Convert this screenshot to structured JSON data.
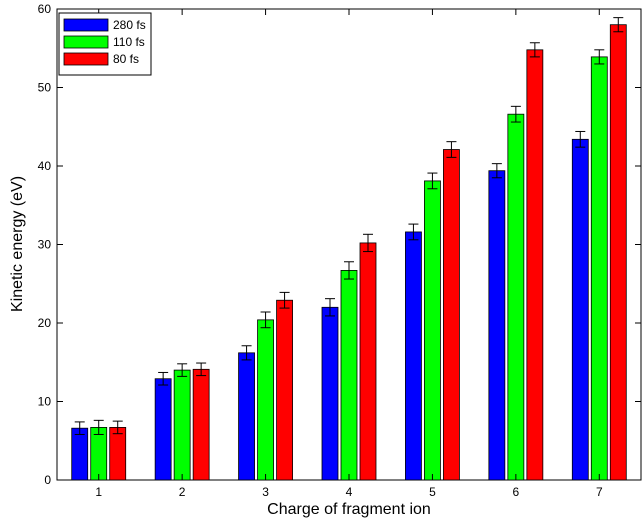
{
  "chart_data": {
    "type": "bar",
    "categories": [
      "1",
      "2",
      "3",
      "4",
      "5",
      "6",
      "7"
    ],
    "series": [
      {
        "name": "280 fs",
        "color": "#0000ff",
        "values": [
          6.6,
          12.9,
          16.2,
          22.0,
          31.6,
          39.4,
          43.4
        ],
        "errors": [
          0.8,
          0.8,
          0.9,
          1.1,
          1.0,
          0.9,
          1.0
        ]
      },
      {
        "name": "110 fs",
        "color": "#00ff00",
        "values": [
          6.7,
          14.0,
          20.4,
          26.7,
          38.1,
          46.6,
          53.9
        ],
        "errors": [
          0.9,
          0.8,
          1.0,
          1.1,
          1.0,
          1.0,
          0.9
        ]
      },
      {
        "name": "80 fs",
        "color": "#ff0000",
        "values": [
          6.7,
          14.1,
          22.9,
          30.2,
          42.1,
          54.8,
          58.0
        ],
        "errors": [
          0.8,
          0.8,
          1.0,
          1.1,
          1.0,
          0.9,
          0.9
        ]
      }
    ],
    "xlabel": "Charge of fragment ion",
    "ylabel": "Kinetic energy (eV)",
    "ylim": [
      0,
      60
    ],
    "yticks": [
      0,
      10,
      20,
      30,
      40,
      50,
      60
    ],
    "grid": false,
    "legend_position": "top-left"
  }
}
